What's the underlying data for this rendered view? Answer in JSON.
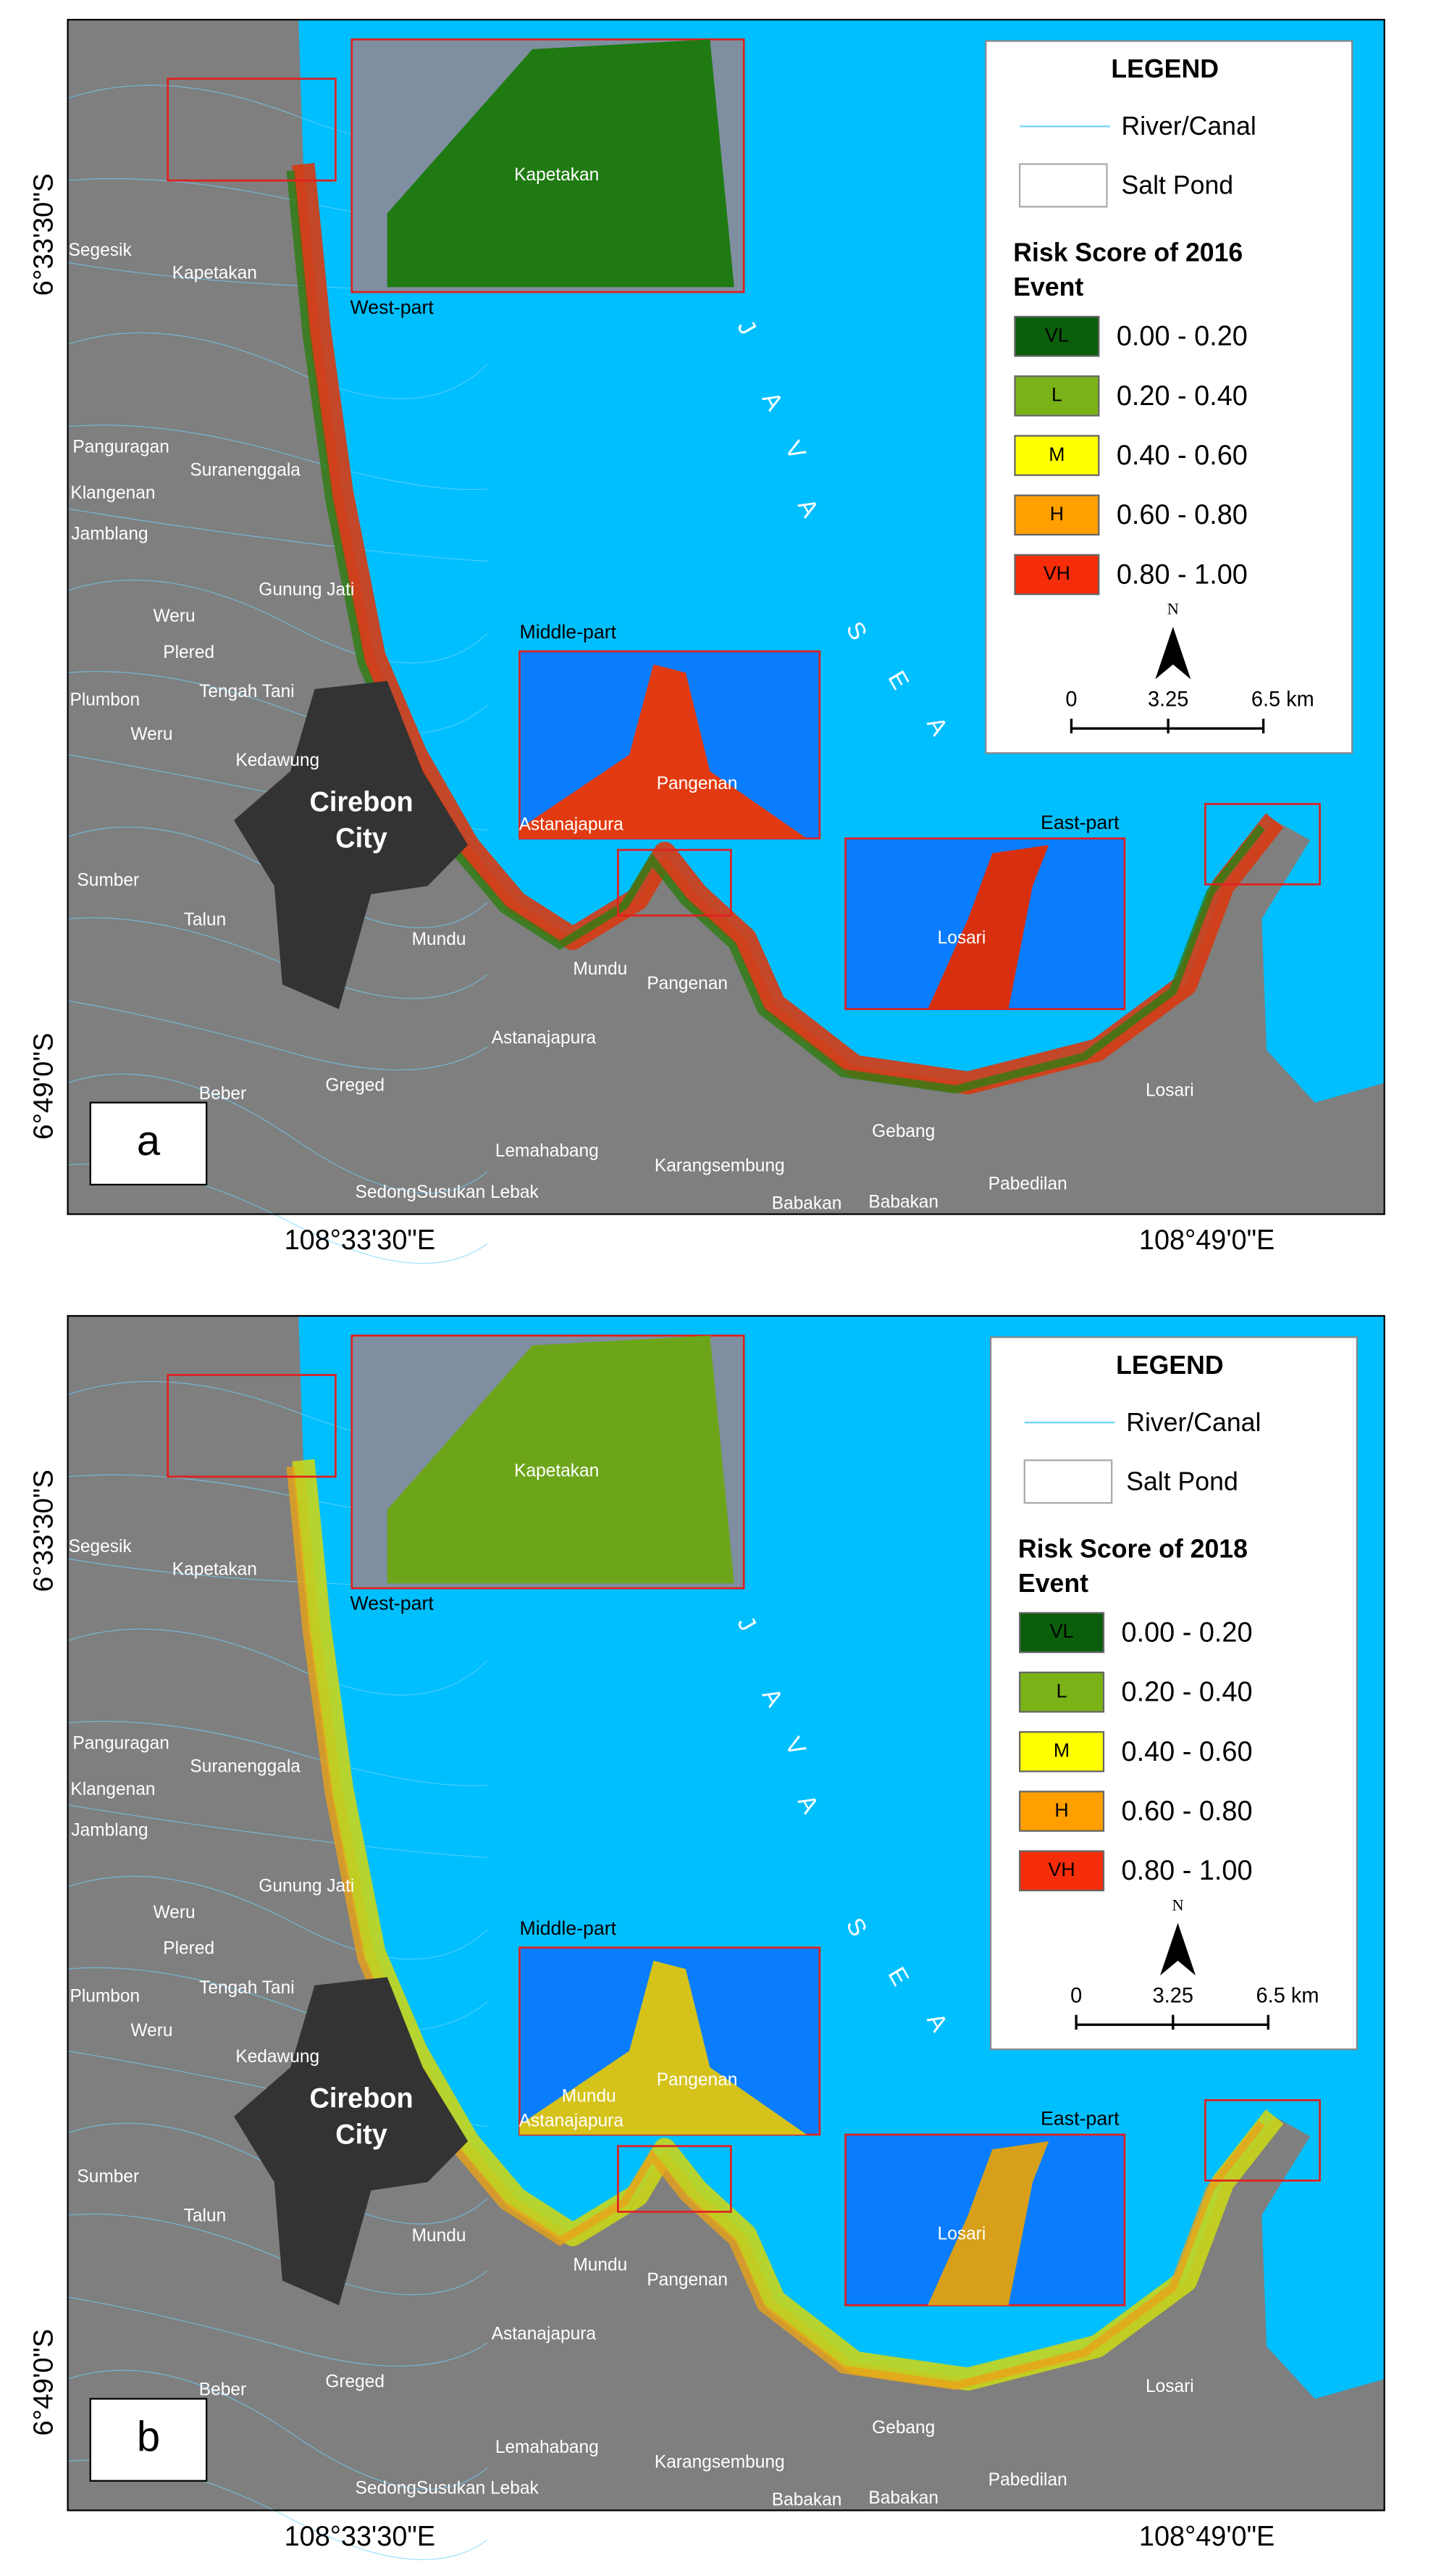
{
  "panels": [
    {
      "label": "a",
      "legend": {
        "title": "LEGEND",
        "items": [
          "River/Canal",
          "Salt Pond"
        ],
        "risk_title": [
          "Risk Score of 2016",
          "Event"
        ],
        "classes": [
          {
            "code": "VL",
            "range": "0.00 - 0.20",
            "color": "#0b5e0b"
          },
          {
            "code": "L",
            "range": "0.20 - 0.40",
            "color": "#7ab317"
          },
          {
            "code": "M",
            "range": "0.40 - 0.60",
            "color": "#ffff00"
          },
          {
            "code": "H",
            "range": "0.60 - 0.80",
            "color": "#ff9f00"
          },
          {
            "code": "VH",
            "range": "0.80 - 1.00",
            "color": "#f52d0a"
          }
        ],
        "north": "N",
        "scale": [
          "0",
          "3.25",
          "6.5 km"
        ]
      },
      "insets": [
        "West-part",
        "Middle-part",
        "East-part"
      ],
      "sea": [
        "J",
        "A",
        "V",
        "A",
        "S",
        "E",
        "A"
      ],
      "city": [
        "Cirebon",
        "City"
      ],
      "places": [
        "Segesik",
        "Kapetakan",
        "Panguragan",
        "Suranenggala",
        "Klangenan",
        "Jamblang",
        "Gunung Jati",
        "Weru",
        "Plered",
        "Tengah Tani",
        "Plumbon",
        "Weru",
        "Kedawung",
        "Sumber",
        "Talun",
        "Mundu",
        "Mundu",
        "Pangenan",
        "Astanajapura",
        "Greged",
        "Beber",
        "Lemahabang",
        "Karangsembung",
        "Gebang",
        "Pabedilan",
        "Losari",
        "Babakan",
        "Babakan",
        "SedongSusukan Lebak",
        "Kapetakan",
        "Pangenan",
        "Astanajapura",
        "Losari"
      ],
      "lat_labels": [
        "6°33'30\"S",
        "6°49'0\"S"
      ],
      "lon_labels": [
        "108°33'30\"E",
        "108°49'0\"E"
      ]
    },
    {
      "label": "b",
      "legend": {
        "title": "LEGEND",
        "items": [
          "River/Canal",
          "Salt Pond"
        ],
        "risk_title": [
          "Risk Score of 2018",
          "Event"
        ],
        "classes": [
          {
            "code": "VL",
            "range": "0.00 - 0.20",
            "color": "#0b5e0b"
          },
          {
            "code": "L",
            "range": "0.20 - 0.40",
            "color": "#7ab317"
          },
          {
            "code": "M",
            "range": "0.40 - 0.60",
            "color": "#ffff00"
          },
          {
            "code": "H",
            "range": "0.60 - 0.80",
            "color": "#ff9f00"
          },
          {
            "code": "VH",
            "range": "0.80 - 1.00",
            "color": "#f52d0a"
          }
        ],
        "north": "N",
        "scale": [
          "0",
          "3.25",
          "6.5 km"
        ]
      },
      "insets": [
        "West-part",
        "Middle-part",
        "East-part"
      ],
      "sea": [
        "J",
        "A",
        "V",
        "A",
        "S",
        "E",
        "A"
      ],
      "city": [
        "Cirebon",
        "City"
      ],
      "places": [
        "Segesik",
        "Kapetakan",
        "Panguragan",
        "Suranenggala",
        "Klangenan",
        "Jamblang",
        "Gunung Jati",
        "Weru",
        "Plered",
        "Tengah Tani",
        "Plumbon",
        "Weru",
        "Kedawung",
        "Sumber",
        "Talun",
        "Mundu",
        "Mundu",
        "Pangenan",
        "Astanajapura",
        "Greged",
        "Beber",
        "Lemahabang",
        "Karangsembung",
        "Gebang",
        "Pabedilan",
        "Losari",
        "Babakan",
        "Babakan",
        "SedongSusukan Lebak",
        "Kapetakan",
        "Pangenan",
        "Astanajapura",
        "Losari",
        "Mundu"
      ],
      "lat_labels": [
        "6°33'30\"S",
        "6°49'0\"S"
      ],
      "lon_labels": [
        "108°33'30\"E",
        "108°49'0\"E"
      ]
    }
  ]
}
